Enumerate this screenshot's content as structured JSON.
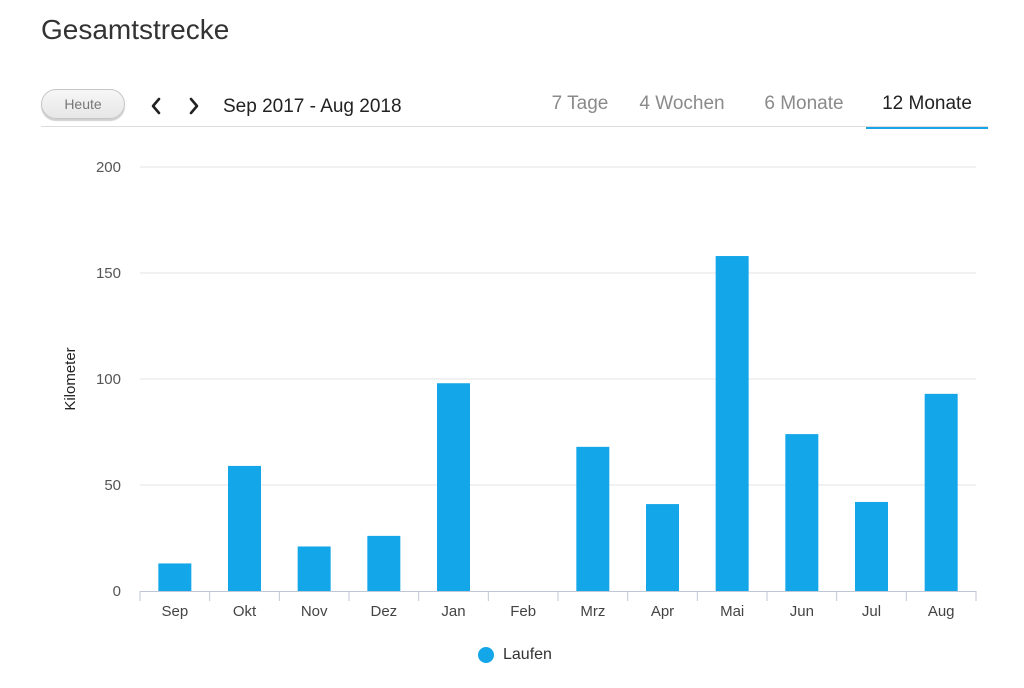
{
  "header": {
    "title": "Gesamtstrecke"
  },
  "toolbar": {
    "today_label": "Heute",
    "prev_icon": "chevron-left-icon",
    "next_icon": "chevron-right-icon",
    "date_range": "Sep 2017 - Aug 2018",
    "tabs": [
      {
        "label": "7 Tage",
        "active": false
      },
      {
        "label": "4 Wochen",
        "active": false
      },
      {
        "label": "6 Monate",
        "active": false
      },
      {
        "label": "12 Monate",
        "active": true
      }
    ],
    "accent_color": "#1aa3e6"
  },
  "chart_data": {
    "type": "bar",
    "title": "",
    "xlabel": "",
    "ylabel": "Kilometer",
    "ylim": [
      0,
      200
    ],
    "yticks": [
      0,
      50,
      100,
      150,
      200
    ],
    "grid": true,
    "legend_position": "bottom-center",
    "categories": [
      "Sep",
      "Okt",
      "Nov",
      "Dez",
      "Jan",
      "Feb",
      "Mrz",
      "Apr",
      "Mai",
      "Jun",
      "Jul",
      "Aug"
    ],
    "series": [
      {
        "name": "Laufen",
        "color": "#13a6e8",
        "values": [
          13,
          59,
          21,
          26,
          98,
          0,
          68,
          41,
          158,
          74,
          42,
          93
        ]
      }
    ]
  }
}
